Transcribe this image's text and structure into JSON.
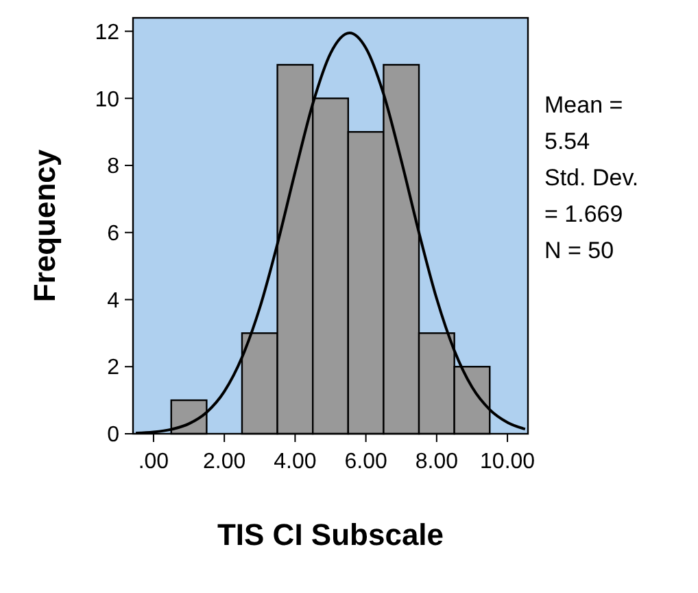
{
  "chart_data": {
    "type": "histogram",
    "xlabel": "TIS CI Subscale",
    "ylabel": "Frequency",
    "bins": [
      0.5,
      1.5,
      2.5,
      3.5,
      4.5,
      5.5,
      6.5,
      7.5,
      8.5,
      9.5
    ],
    "values": [
      1,
      0,
      3,
      11,
      10,
      9,
      11,
      3,
      2
    ],
    "color": "#999999",
    "series": [
      {
        "type": "line",
        "color": "#000000",
        "x": [
          -0.5,
          0,
          0.5,
          1,
          1.5,
          2,
          2.5,
          3,
          3.5,
          4,
          4.5,
          5,
          5.54,
          6,
          6.5,
          7,
          7.5,
          8,
          8.5,
          9,
          9.5,
          10,
          10.5
        ],
        "values": [
          0.02,
          0.05,
          0.13,
          0.3,
          0.64,
          1.26,
          2.28,
          3.75,
          5.66,
          7.8,
          9.84,
          11.34,
          11.95,
          11.5,
          10.13,
          8.15,
          6,
          4.03,
          2.48,
          1.39,
          0.72,
          0.34,
          0.14
        ]
      }
    ],
    "xlim": [
      -0.58,
      10.58
    ],
    "ylim": [
      0,
      12.4
    ],
    "xticks": [
      {
        "value": 0,
        "label": ".00"
      },
      {
        "value": 2,
        "label": "2.00"
      },
      {
        "value": 4,
        "label": "4.00"
      },
      {
        "value": 6,
        "label": "6.00"
      },
      {
        "value": 8,
        "label": "8.00"
      },
      {
        "value": 10,
        "label": "10.00"
      }
    ],
    "yticks": [
      0,
      2,
      4,
      6,
      8,
      10,
      12
    ],
    "grid": false,
    "annotations": [
      "Mean =\n5.54",
      "Std. Dev.\n= 1.669",
      "N = 50"
    ]
  }
}
